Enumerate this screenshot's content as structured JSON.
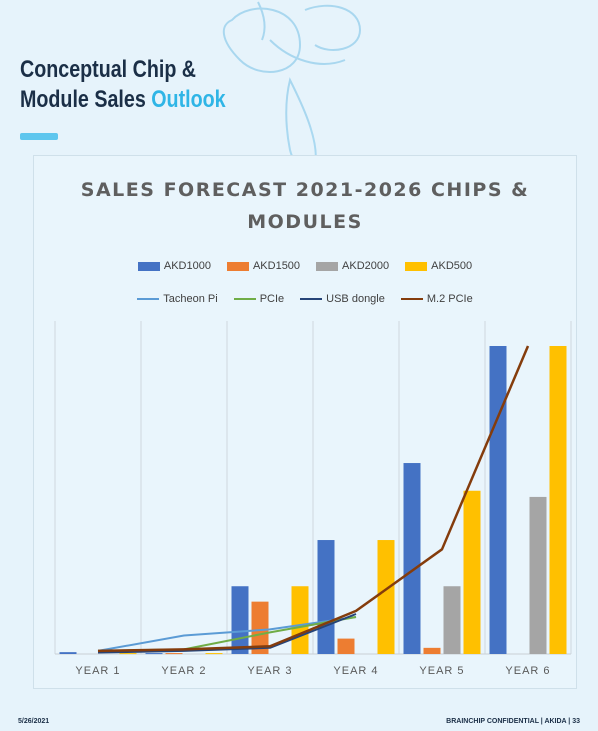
{
  "slide": {
    "title_line1": "Conceptual Chip &",
    "title_line2_prefix": "Module Sales ",
    "title_line2_accent": "Outlook",
    "footer_date": "5/26/2021",
    "footer_right": "BRAINCHIP CONFIDENTIAL  |  AKIDA  |  33",
    "accent_color": "#2fb5e6",
    "title_color": "#1b2f47"
  },
  "chart_data": {
    "type": "bar",
    "title": "SALES FORECAST 2021-2026 CHIPS & MODULES",
    "xlabel": "",
    "ylabel": "",
    "ylim": [
      0,
      100
    ],
    "grid": "vertical",
    "legend_position": "top",
    "categories": [
      "YEAR 1",
      "YEAR 2",
      "YEAR 3",
      "YEAR 4",
      "YEAR 5",
      "YEAR 6"
    ],
    "bar_series": [
      {
        "name": "AKD1000",
        "color": "#4472c4",
        "values": [
          0.6,
          0.3,
          22,
          37,
          62,
          103
        ]
      },
      {
        "name": "AKD1500",
        "color": "#ed7d31",
        "values": [
          0,
          0.3,
          17,
          5,
          2,
          0
        ]
      },
      {
        "name": "AKD2000",
        "color": "#a5a5a5",
        "values": [
          0,
          0,
          0,
          0,
          22,
          51
        ]
      },
      {
        "name": "AKD500",
        "color": "#ffc000",
        "values": [
          0.3,
          0.3,
          22,
          37,
          53,
          103
        ]
      }
    ],
    "line_series": [
      {
        "name": "Tacheon Pi",
        "color": "#5b9bd5",
        "values": [
          1,
          6,
          8,
          12,
          null,
          null
        ]
      },
      {
        "name": "PCIe",
        "color": "#70ad47",
        "values": [
          1,
          1.5,
          7,
          12,
          null,
          null
        ]
      },
      {
        "name": "USB dongle",
        "color": "#264478",
        "values": [
          0.5,
          1,
          2,
          13,
          null,
          null
        ]
      },
      {
        "name": "M.2 PCIe",
        "color": "#843c0c",
        "values": [
          1,
          1.5,
          2.5,
          14,
          34,
          100
        ]
      }
    ]
  }
}
